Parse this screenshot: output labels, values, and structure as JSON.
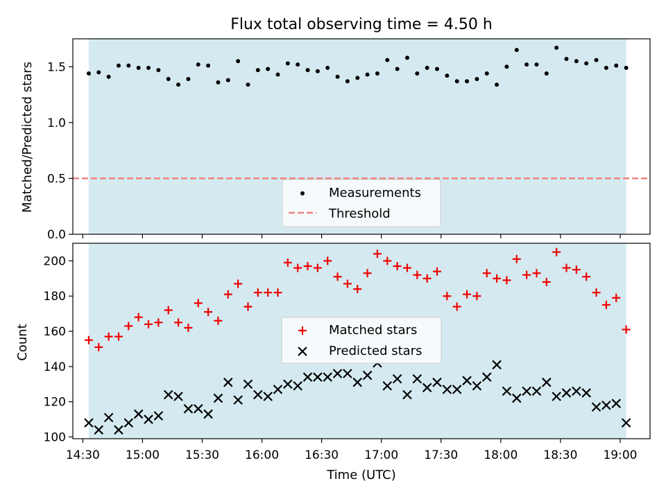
{
  "chart_data": [
    {
      "type": "scatter",
      "title": "Flux total observing time = 4.50 h",
      "ylabel": "Matched/Predicted stars",
      "xlim": [
        "14:25",
        "19:15"
      ],
      "ylim": [
        0,
        1.75
      ],
      "yticks": [
        "0.0",
        "0.5",
        "1.0",
        "1.5"
      ],
      "threshold": 0.5,
      "shaded_span": [
        "14:33",
        "19:03"
      ],
      "legend": {
        "placement": "lower center",
        "measurements_label": "Measurements",
        "threshold_label": "Threshold"
      },
      "series": [
        {
          "name": "Measurements",
          "x": [
            "14:33",
            "14:38",
            "14:43",
            "14:48",
            "14:53",
            "14:58",
            "15:03",
            "15:08",
            "15:13",
            "15:18",
            "15:23",
            "15:28",
            "15:33",
            "15:38",
            "15:43",
            "15:48",
            "15:53",
            "15:58",
            "16:03",
            "16:08",
            "16:13",
            "16:18",
            "16:23",
            "16:28",
            "16:33",
            "16:38",
            "16:43",
            "16:48",
            "16:53",
            "16:58",
            "17:03",
            "17:08",
            "17:13",
            "17:18",
            "17:23",
            "17:28",
            "17:33",
            "17:38",
            "17:43",
            "17:48",
            "17:53",
            "17:58",
            "18:03",
            "18:08",
            "18:13",
            "18:18",
            "18:23",
            "18:28",
            "18:33",
            "18:38",
            "18:43",
            "18:48",
            "18:53",
            "18:58",
            "19:03"
          ],
          "values": [
            1.44,
            1.45,
            1.41,
            1.51,
            1.51,
            1.49,
            1.49,
            1.47,
            1.39,
            1.34,
            1.39,
            1.52,
            1.51,
            1.36,
            1.38,
            1.55,
            1.34,
            1.47,
            1.48,
            1.43,
            1.53,
            1.52,
            1.47,
            1.46,
            1.49,
            1.41,
            1.37,
            1.4,
            1.43,
            1.44,
            1.56,
            1.48,
            1.58,
            1.44,
            1.49,
            1.48,
            1.42,
            1.37,
            1.37,
            1.39,
            1.44,
            1.34,
            1.5,
            1.65,
            1.52,
            1.52,
            1.44,
            1.67,
            1.57,
            1.55,
            1.53,
            1.56,
            1.49,
            1.51,
            1.49
          ]
        }
      ]
    },
    {
      "type": "scatter",
      "xlabel": "Time (UTC)",
      "ylabel": "Count",
      "xlim": [
        "14:25",
        "19:15"
      ],
      "ylim": [
        99,
        210
      ],
      "xticks": [
        "14:30",
        "15:00",
        "15:30",
        "16:00",
        "16:30",
        "17:00",
        "17:30",
        "18:00",
        "18:30",
        "19:00"
      ],
      "yticks": [
        "100",
        "120",
        "140",
        "160",
        "180",
        "200"
      ],
      "shaded_span": [
        "14:33",
        "19:03"
      ],
      "legend": {
        "placement": "center",
        "matched_label": "Matched stars",
        "predicted_label": "Predicted stars"
      },
      "x": [
        "14:33",
        "14:38",
        "14:43",
        "14:48",
        "14:53",
        "14:58",
        "15:03",
        "15:08",
        "15:13",
        "15:18",
        "15:23",
        "15:28",
        "15:33",
        "15:38",
        "15:43",
        "15:48",
        "15:53",
        "15:58",
        "16:03",
        "16:08",
        "16:13",
        "16:18",
        "16:23",
        "16:28",
        "16:33",
        "16:38",
        "16:43",
        "16:48",
        "16:53",
        "16:58",
        "17:03",
        "17:08",
        "17:13",
        "17:18",
        "17:23",
        "17:28",
        "17:33",
        "17:38",
        "17:43",
        "17:48",
        "17:53",
        "17:58",
        "18:03",
        "18:08",
        "18:13",
        "18:18",
        "18:23",
        "18:28",
        "18:33",
        "18:38",
        "18:43",
        "18:48",
        "18:53",
        "18:58",
        "19:03"
      ],
      "series": [
        {
          "name": "Matched stars",
          "values": [
            155,
            151,
            157,
            157,
            163,
            168,
            164,
            165,
            172,
            165,
            162,
            176,
            171,
            166,
            181,
            187,
            174,
            182,
            182,
            182,
            199,
            196,
            197,
            196,
            200,
            191,
            187,
            184,
            193,
            204,
            200,
            197,
            196,
            192,
            190,
            194,
            180,
            174,
            181,
            180,
            193,
            190,
            189,
            201,
            192,
            193,
            188,
            205,
            196,
            195,
            191,
            182,
            175,
            179,
            161
          ]
        },
        {
          "name": "Predicted stars",
          "values": [
            108,
            104,
            111,
            104,
            108,
            113,
            110,
            112,
            124,
            123,
            116,
            116,
            113,
            122,
            131,
            121,
            130,
            124,
            123,
            127,
            130,
            129,
            134,
            134,
            134,
            136,
            136,
            131,
            135,
            142,
            129,
            133,
            124,
            133,
            128,
            131,
            127,
            127,
            132,
            129,
            134,
            141,
            126,
            122,
            126,
            126,
            131,
            123,
            125,
            126,
            125,
            117,
            118,
            119,
            108
          ]
        }
      ]
    }
  ],
  "colors": {
    "shade": "#d4eaf0",
    "threshold": "#f08080",
    "matched": "#ee0000",
    "predicted": "#000000",
    "measurement": "#000000"
  }
}
